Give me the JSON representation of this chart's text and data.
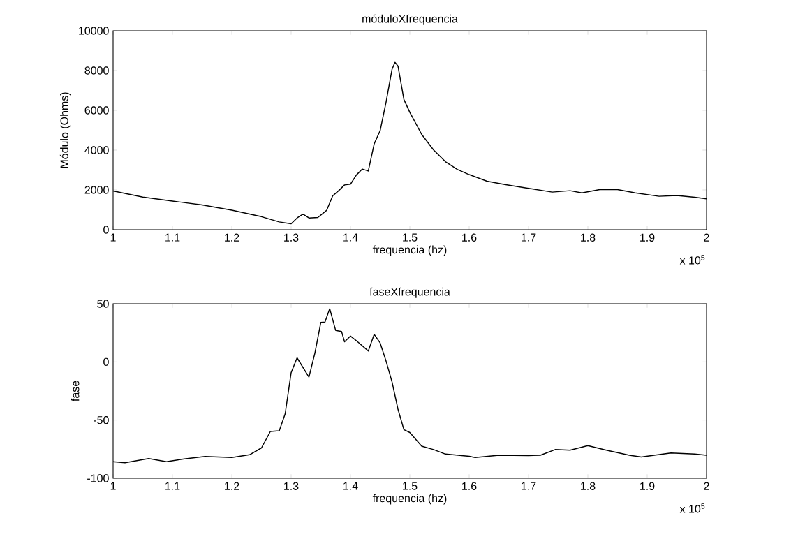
{
  "chart_data": [
    {
      "type": "line",
      "title": "móduloXfrequencia",
      "xlabel": "frequencia (hz)",
      "ylabel": "Módulo (Ohms)",
      "annotations": [
        "x 10$^{5}$"
      ],
      "x": [
        1.0,
        1.05,
        1.1,
        1.15,
        1.2,
        1.25,
        1.28,
        1.3,
        1.31,
        1.32,
        1.33,
        1.345,
        1.36,
        1.37,
        1.38,
        1.39,
        1.4,
        1.41,
        1.42,
        1.43,
        1.44,
        1.45,
        1.46,
        1.47,
        1.475,
        1.48,
        1.49,
        1.5,
        1.52,
        1.54,
        1.56,
        1.58,
        1.6,
        1.63,
        1.66,
        1.7,
        1.74,
        1.77,
        1.79,
        1.82,
        1.85,
        1.88,
        1.92,
        1.95,
        1.98,
        2.0
      ],
      "series": [
        {
          "color": "#000000",
          "values": [
            1950,
            1640,
            1440,
            1245,
            980,
            655,
            390,
            300,
            590,
            785,
            590,
            615,
            980,
            1700,
            1960,
            2250,
            2290,
            2750,
            3050,
            2950,
            4320,
            4980,
            6420,
            8060,
            8410,
            8230,
            6550,
            5900,
            4790,
            4010,
            3420,
            3030,
            2770,
            2440,
            2270,
            2080,
            1890,
            1960,
            1850,
            2020,
            2020,
            1850,
            1680,
            1720,
            1630,
            1550
          ]
        }
      ],
      "xlim": [
        1,
        2
      ],
      "xticks": [
        1,
        1.1,
        1.2,
        1.3,
        1.4,
        1.5,
        1.6,
        1.7,
        1.8,
        1.9,
        2
      ],
      "ylim": [
        0,
        10000
      ],
      "yticks": [
        0,
        2000,
        4000,
        6000,
        8000,
        10000
      ]
    },
    {
      "type": "line",
      "title": "faseXfrequencia",
      "xlabel": "frequencia (hz)",
      "ylabel": "fase",
      "annotations": [
        "x 10$^{5}$"
      ],
      "x": [
        1.0,
        1.02,
        1.06,
        1.09,
        1.12,
        1.155,
        1.2,
        1.23,
        1.25,
        1.265,
        1.28,
        1.29,
        1.3,
        1.31,
        1.33,
        1.34,
        1.35,
        1.357,
        1.365,
        1.375,
        1.385,
        1.39,
        1.4,
        1.41,
        1.43,
        1.44,
        1.45,
        1.46,
        1.47,
        1.48,
        1.49,
        1.5,
        1.52,
        1.54,
        1.56,
        1.6,
        1.61,
        1.65,
        1.7,
        1.72,
        1.745,
        1.77,
        1.8,
        1.83,
        1.87,
        1.89,
        1.94,
        1.98,
        2.0
      ],
      "series": [
        {
          "color": "#000000",
          "values": [
            -85.7,
            -86.7,
            -83.1,
            -85.7,
            -83.3,
            -81.2,
            -82.2,
            -79.8,
            -73.9,
            -59.8,
            -59.2,
            -44.5,
            -9.2,
            3.5,
            -13.1,
            7.5,
            33.9,
            34.3,
            45.7,
            27.1,
            26.1,
            17.3,
            22.2,
            18.2,
            9.4,
            23.7,
            16.3,
            0.6,
            -17.1,
            -40.6,
            -58.2,
            -60.7,
            -72.4,
            -75.3,
            -79.2,
            -81.1,
            -82.1,
            -80.2,
            -80.5,
            -80.2,
            -75.3,
            -75.9,
            -72,
            -75.7,
            -80.2,
            -81.7,
            -78.2,
            -79.2,
            -80.2
          ]
        }
      ],
      "xlim": [
        1,
        2
      ],
      "xticks": [
        1,
        1.1,
        1.2,
        1.3,
        1.4,
        1.5,
        1.6,
        1.7,
        1.8,
        1.9,
        2
      ],
      "ylim": [
        -100,
        50
      ],
      "yticks": [
        -100,
        -50,
        0,
        50
      ]
    }
  ]
}
